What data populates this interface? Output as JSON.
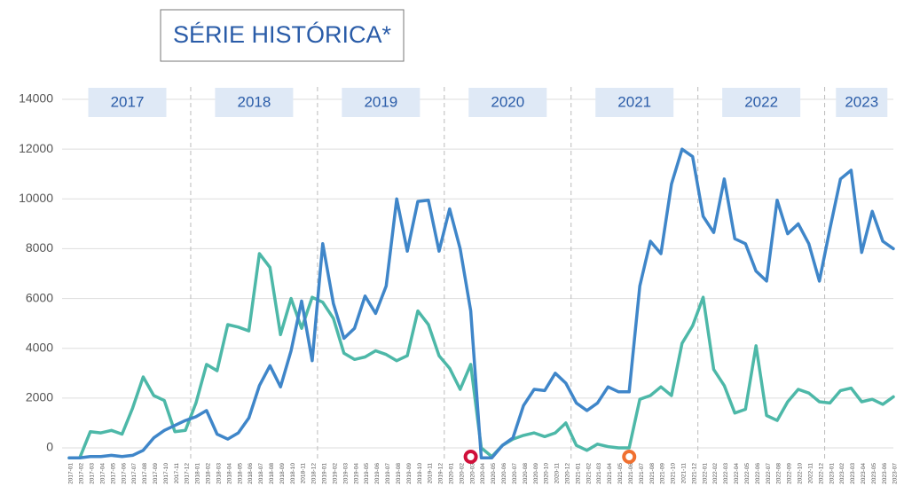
{
  "chart_data": {
    "type": "line",
    "title": "SÉRIE HISTÓRICA*",
    "annotations": [
      "2017",
      "2018",
      "2019",
      "2020",
      "2021",
      "2022",
      "2023"
    ],
    "categories": [
      "2017-01",
      "2017-02",
      "2017-03",
      "2017-04",
      "2017-05",
      "2017-06",
      "2017-07",
      "2017-08",
      "2017-09",
      "2017-10",
      "2017-11",
      "2017-12",
      "2018-01",
      "2018-02",
      "2018-03",
      "2018-04",
      "2018-05",
      "2018-06",
      "2018-07",
      "2018-08",
      "2018-09",
      "2018-10",
      "2018-11",
      "2018-12",
      "2019-01",
      "2019-02",
      "2019-03",
      "2019-04",
      "2019-05",
      "2019-06",
      "2019-07",
      "2019-08",
      "2019-09",
      "2019-10",
      "2019-11",
      "2019-12",
      "2020-01",
      "2020-02",
      "2020-03",
      "2020-04",
      "2020-05",
      "2020-06",
      "2020-07",
      "2020-08",
      "2020-09",
      "2020-10",
      "2020-11",
      "2020-12",
      "2021-01",
      "2021-02",
      "2021-03",
      "2021-04",
      "2021-05",
      "2021-06",
      "2021-07",
      "2021-08",
      "2021-09",
      "2021-10",
      "2021-11",
      "2021-12",
      "2022-01",
      "2022-02",
      "2022-03",
      "2022-04",
      "2022-05",
      "2022-06",
      "2022-07",
      "2022-08",
      "2022-09",
      "2022-10",
      "2022-11",
      "2022-12",
      "2023-01",
      "2023-02",
      "2023-03",
      "2023-04",
      "2023-05",
      "2023-06",
      "2023-07"
    ],
    "series": [
      {
        "color": "#3f86c9",
        "values": [
          -400,
          -400,
          -350,
          -350,
          -300,
          -350,
          -300,
          -100,
          400,
          700,
          900,
          1100,
          1250,
          1500,
          550,
          350,
          600,
          1200,
          2500,
          3300,
          2450,
          3900,
          5900,
          3500,
          8200,
          5800,
          4400,
          4800,
          6100,
          5400,
          6500,
          10000,
          7900,
          9900,
          9950,
          7900,
          9600,
          8000,
          5500,
          -400,
          -400,
          100,
          400,
          1700,
          2350,
          2300,
          3000,
          2600,
          1800,
          1500,
          1800,
          2450,
          2250,
          2250,
          6500,
          8300,
          7800,
          10600,
          12000,
          11700,
          9300,
          8650,
          10800,
          8400,
          8200,
          7100,
          6700,
          9950,
          8600,
          9000,
          8200,
          6700,
          8800,
          10800,
          11150,
          7850,
          9500,
          8300,
          8000
        ]
      },
      {
        "color": "#4db8a8",
        "values": [
          -400,
          -400,
          650,
          600,
          700,
          550,
          1600,
          2850,
          2100,
          1900,
          650,
          700,
          1800,
          3350,
          3100,
          4950,
          4850,
          4700,
          7800,
          7250,
          4550,
          6000,
          4800,
          6050,
          5850,
          5200,
          3800,
          3550,
          3650,
          3900,
          3750,
          3500,
          3700,
          5500,
          4950,
          3700,
          3200,
          2350,
          3350,
          0,
          -350,
          100,
          350,
          500,
          600,
          450,
          600,
          1000,
          100,
          -100,
          150,
          50,
          0,
          0,
          1950,
          2100,
          2450,
          2100,
          4200,
          4900,
          6050,
          3150,
          2500,
          1400,
          1550,
          4100,
          1300,
          1100,
          1850,
          2350,
          2200,
          1850,
          1800,
          2300,
          2400,
          1850,
          1950,
          1750,
          2050
        ]
      }
    ],
    "ylim": [
      -500,
      14500
    ],
    "yticks": [
      0,
      2000,
      4000,
      6000,
      8000,
      10000,
      12000,
      14000
    ],
    "grid": true
  }
}
